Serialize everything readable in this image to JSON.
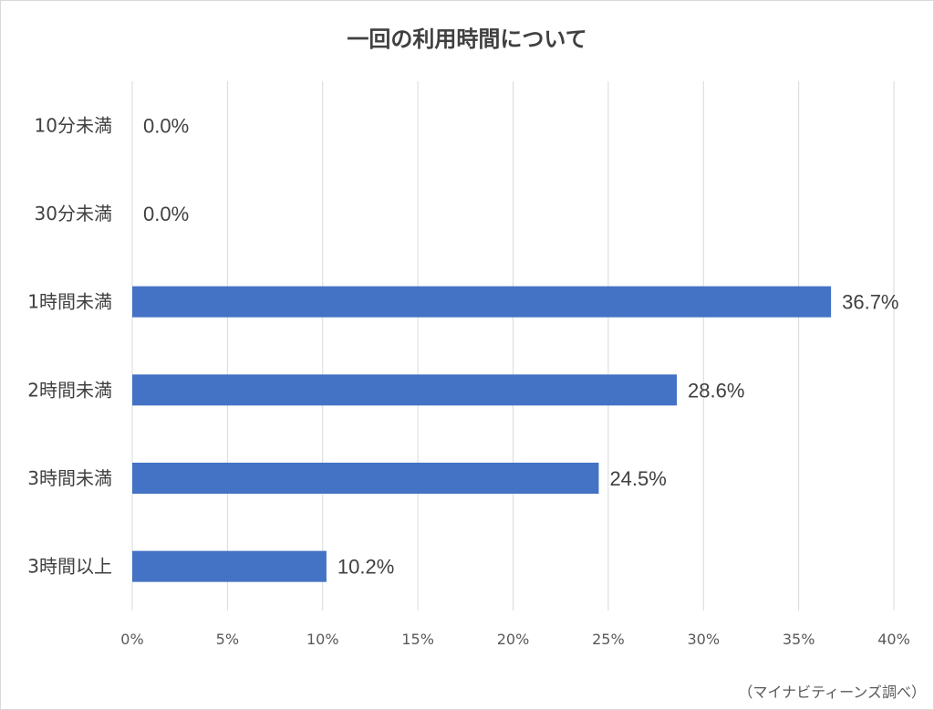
{
  "chart_data": {
    "type": "bar",
    "orientation": "horizontal",
    "title": "一回の利用時間について",
    "categories": [
      "10分未満",
      "30分未満",
      "1時間未満",
      "2時間未満",
      "3時間未満",
      "3時間以上"
    ],
    "values": [
      0.0,
      0.0,
      36.7,
      28.6,
      24.5,
      10.2
    ],
    "data_labels": [
      "0.0%",
      "0.0%",
      "36.7%",
      "28.6%",
      "24.5%",
      "10.2%"
    ],
    "x_ticks": [
      "0%",
      "5%",
      "10%",
      "15%",
      "20%",
      "25%",
      "30%",
      "35%",
      "40%"
    ],
    "xlim": [
      0,
      40
    ],
    "xlabel": "",
    "ylabel": "",
    "grid": "vertical",
    "legend": "none",
    "bar_color": "#4472c4",
    "source": "（マイナビティーンズ調べ）"
  }
}
